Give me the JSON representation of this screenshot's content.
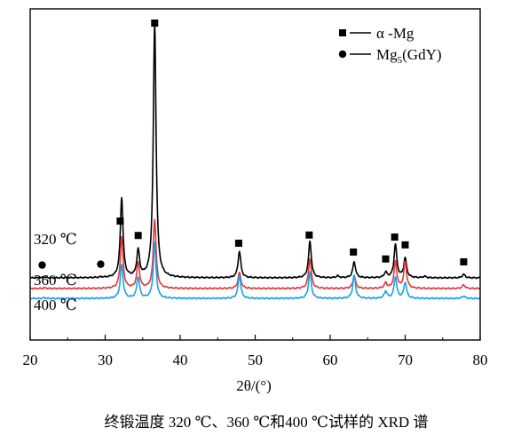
{
  "chart_data": {
    "type": "line",
    "title": "",
    "caption": "终锻温度 320 ℃、360 ℃和400 ℃试样的 XRD 谱",
    "xlabel": "2θ/(°)",
    "ylabel": "",
    "xlim": [
      20,
      80
    ],
    "xticks": [
      20,
      30,
      40,
      50,
      60,
      70,
      80
    ],
    "y_axis_ticks_shown": false,
    "grid": false,
    "legend": {
      "position": "top-right",
      "entries": [
        {
          "marker": "square",
          "label_main": "α -Mg",
          "label_sub": ""
        },
        {
          "marker": "circle",
          "label_main": "Mg",
          "label_sub": "5",
          "label_tail": "(GdY)"
        }
      ]
    },
    "series_style": [
      {
        "name": "320 ℃",
        "color": "#000000"
      },
      {
        "name": "360 ℃",
        "color": "#e0383c"
      },
      {
        "name": "400 ℃",
        "color": "#1aa0e6"
      }
    ],
    "series": [
      {
        "name": "320 ℃",
        "color": "#000000",
        "offset": 0.3,
        "peaks": [
          [
            21.9,
            0.02
          ],
          [
            29.5,
            0.015
          ],
          [
            32.2,
            2.24
          ],
          [
            34.4,
            0.75
          ],
          [
            36.6,
            7.2
          ],
          [
            47.9,
            0.75
          ],
          [
            57.3,
            1.03
          ],
          [
            61.0,
            0.05
          ],
          [
            63.2,
            0.45
          ],
          [
            67.4,
            0.15
          ],
          [
            68.7,
            0.94
          ],
          [
            70.0,
            0.55
          ],
          [
            72.6,
            0.04
          ],
          [
            77.8,
            0.1
          ]
        ]
      },
      {
        "name": "360 ℃",
        "color": "#e0383c",
        "offset": 0.0,
        "peaks": [
          [
            21.9,
            0.02
          ],
          [
            32.2,
            1.45
          ],
          [
            34.4,
            0.73
          ],
          [
            36.6,
            1.95
          ],
          [
            47.9,
            0.45
          ],
          [
            57.3,
            0.85
          ],
          [
            63.2,
            0.35
          ],
          [
            67.4,
            0.15
          ],
          [
            68.7,
            0.75
          ],
          [
            70.0,
            0.75
          ],
          [
            77.8,
            0.1
          ]
        ]
      },
      {
        "name": "400 ℃",
        "color": "#1aa0e6",
        "offset": -0.28,
        "peaks": [
          [
            21.9,
            0.02
          ],
          [
            32.2,
            0.95
          ],
          [
            34.4,
            0.6
          ],
          [
            36.6,
            1.55
          ],
          [
            47.9,
            0.65
          ],
          [
            57.3,
            0.75
          ],
          [
            63.2,
            0.65
          ],
          [
            67.4,
            0.2
          ],
          [
            68.7,
            0.6
          ],
          [
            70.0,
            0.45
          ],
          [
            77.8,
            0.07
          ]
        ]
      }
    ],
    "phase_markers": [
      {
        "phase": "α -Mg",
        "marker": "square",
        "x": [
          32.0,
          34.4,
          36.6,
          47.8,
          57.2,
          63.1,
          67.4,
          68.6,
          70.0,
          77.8
        ]
      },
      {
        "phase": "Mg5(GdY)",
        "marker": "circle",
        "x": [
          21.6,
          29.4
        ]
      }
    ]
  }
}
